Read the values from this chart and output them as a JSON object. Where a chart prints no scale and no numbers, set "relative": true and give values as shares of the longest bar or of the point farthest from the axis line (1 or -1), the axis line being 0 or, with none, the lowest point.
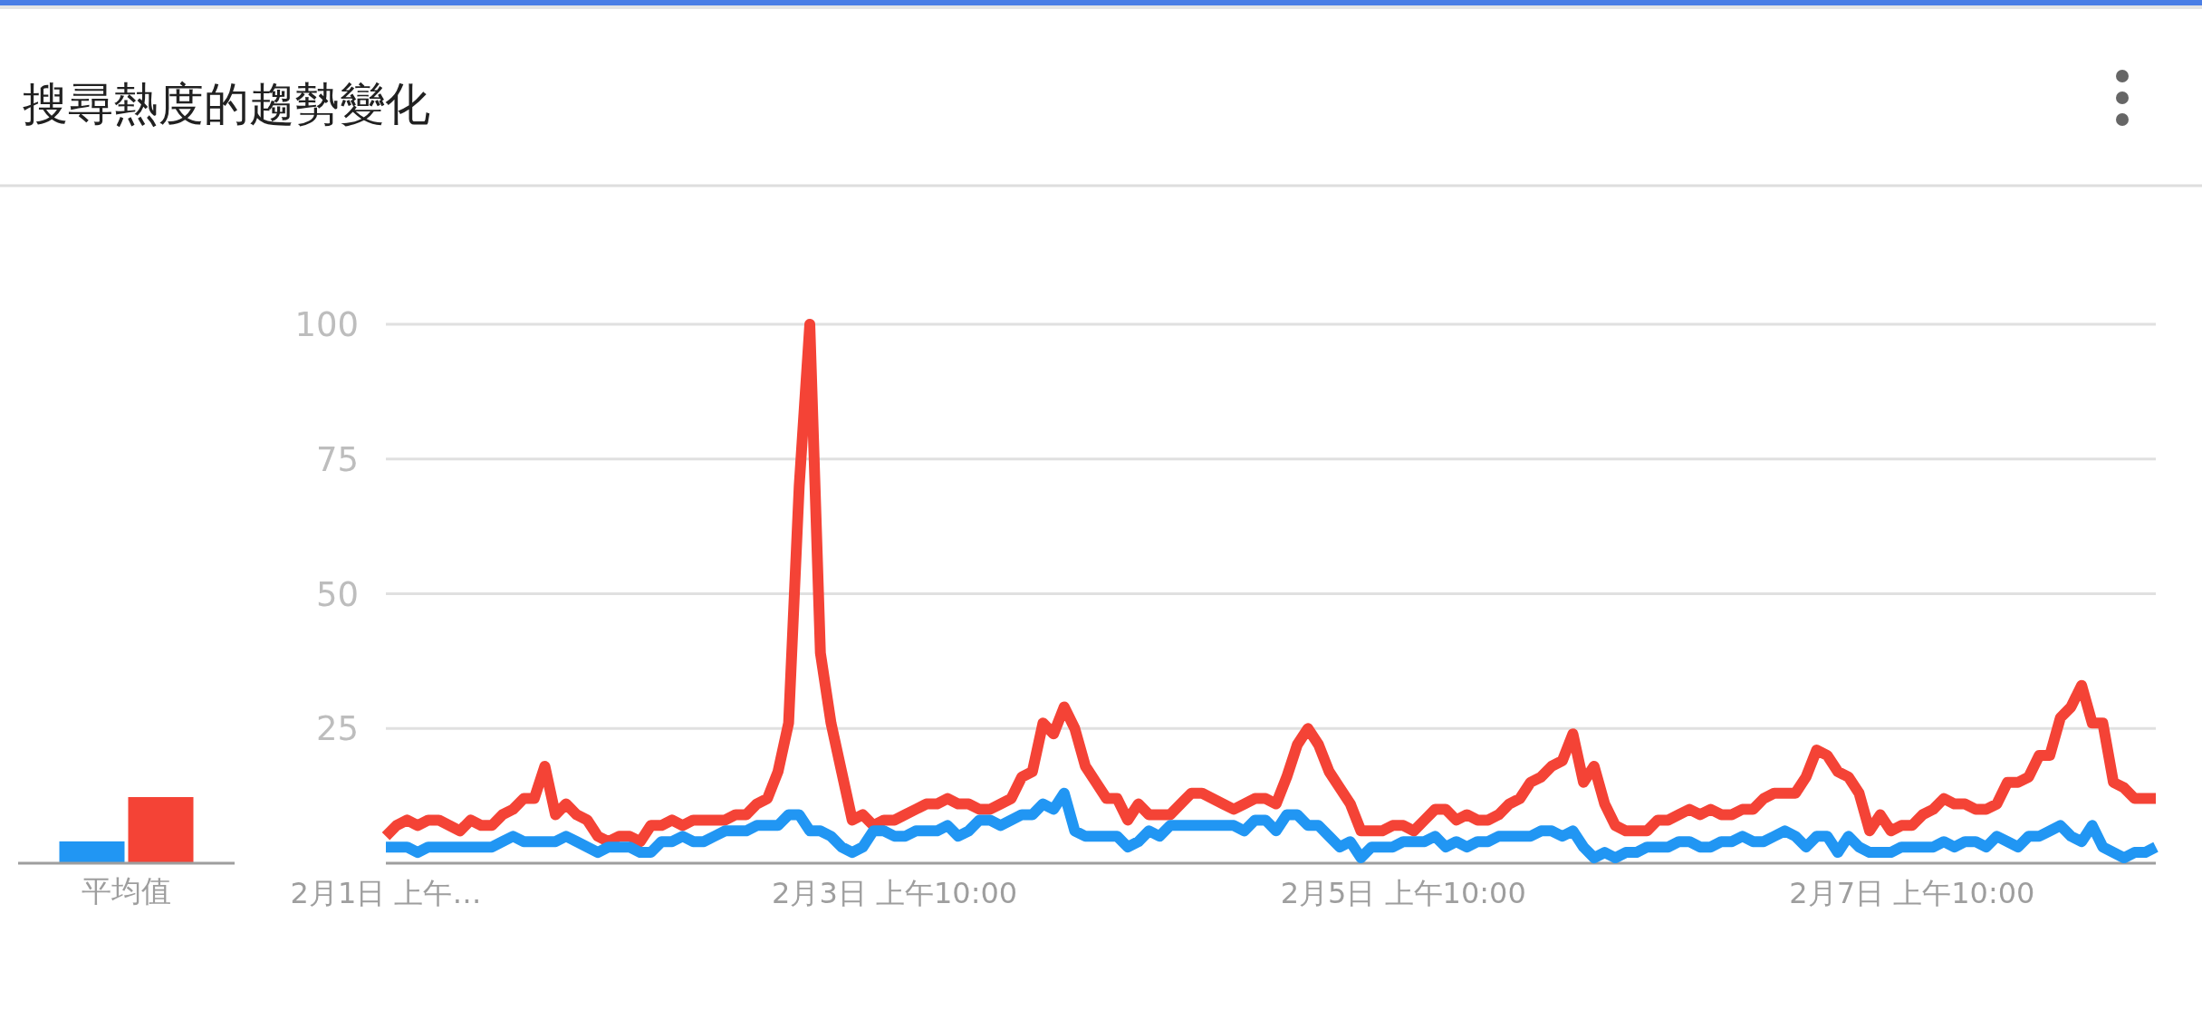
{
  "chart_data": [
    {
      "type": "bar",
      "title": "搜尋熱度的趨勢變化",
      "relative": true,
      "categories": [
        "平均值"
      ],
      "series": [
        {
          "color": "#2196f3",
          "values": [
            0.33
          ]
        },
        {
          "color": "#f44336",
          "values": [
            1
          ]
        }
      ]
    },
    {
      "type": "line",
      "ylim": [
        0,
        100
      ],
      "grid": "y",
      "categories": [
        "2月1日 上午…",
        null,
        null,
        null,
        null,
        null,
        null,
        null,
        null,
        null,
        null,
        null,
        null,
        null,
        null,
        null,
        null,
        null,
        null,
        null,
        null,
        null,
        null,
        null,
        null,
        null,
        null,
        null,
        null,
        null,
        null,
        null,
        null,
        null,
        null,
        null,
        null,
        null,
        null,
        null,
        null,
        null,
        null,
        null,
        null,
        null,
        null,
        null,
        "2月3日 上午10:00",
        null,
        null,
        null,
        null,
        null,
        null,
        null,
        null,
        null,
        null,
        null,
        null,
        null,
        null,
        null,
        null,
        null,
        null,
        null,
        null,
        null,
        null,
        null,
        null,
        null,
        null,
        null,
        null,
        null,
        null,
        null,
        null,
        null,
        null,
        null,
        null,
        null,
        null,
        null,
        null,
        null,
        null,
        null,
        null,
        null,
        null,
        null,
        "2月5日 上午10:00",
        null,
        null,
        null,
        null,
        null,
        null,
        null,
        null,
        null,
        null,
        null,
        null,
        null,
        null,
        null,
        null,
        null,
        null,
        null,
        null,
        null,
        null,
        null,
        null,
        null,
        null,
        null,
        null,
        null,
        null,
        null,
        null,
        null,
        null,
        null,
        null,
        null,
        null,
        null,
        null,
        null,
        null,
        null,
        null,
        null,
        null,
        null,
        "2月7日 上午10:00",
        null,
        null,
        null,
        null,
        null,
        null,
        null,
        null,
        null,
        null,
        null,
        null,
        null,
        null,
        null,
        null,
        null,
        null,
        null,
        null,
        null,
        null,
        null
      ],
      "yticks": [
        {
          "value": 0,
          "label": null
        },
        25,
        50,
        75,
        100
      ],
      "series": [
        {
          "color": "#f44336",
          "values": [
            5,
            7,
            8,
            7,
            8,
            8,
            7,
            6,
            8,
            7,
            7,
            9,
            10,
            12,
            12,
            18,
            9,
            11,
            9,
            8,
            5,
            4,
            5,
            5,
            4,
            7,
            7,
            8,
            7,
            8,
            8,
            8,
            8,
            9,
            9,
            11,
            12,
            17,
            26,
            70,
            100,
            39,
            26,
            17,
            8,
            9,
            7,
            8,
            8,
            9,
            10,
            11,
            11,
            12,
            11,
            11,
            10,
            10,
            11,
            12,
            16,
            17,
            26,
            24,
            29,
            25,
            18,
            15,
            12,
            12,
            8,
            11,
            9,
            9,
            9,
            11,
            13,
            13,
            12,
            11,
            10,
            11,
            12,
            12,
            11,
            16,
            22,
            25,
            22,
            17,
            14,
            11,
            6,
            6,
            6,
            7,
            7,
            6,
            8,
            10,
            10,
            8,
            9,
            8,
            8,
            9,
            11,
            12,
            15,
            16,
            18,
            19,
            24,
            15,
            18,
            11,
            7,
            6,
            6,
            6,
            8,
            8,
            9,
            10,
            9,
            10,
            9,
            9,
            10,
            10,
            12,
            13,
            13,
            13,
            16,
            21,
            20,
            17,
            16,
            13,
            6,
            9,
            6,
            7,
            7,
            9,
            10,
            12,
            11,
            11,
            10,
            10,
            11,
            15,
            15,
            16,
            20,
            20,
            27,
            29,
            33,
            26,
            26,
            15,
            14,
            12,
            12,
            12
          ]
        },
        {
          "color": "#2196f3",
          "values": [
            3,
            3,
            3,
            2,
            3,
            3,
            3,
            3,
            3,
            3,
            3,
            4,
            5,
            4,
            4,
            4,
            4,
            5,
            4,
            3,
            2,
            3,
            3,
            3,
            2,
            2,
            4,
            4,
            5,
            4,
            4,
            5,
            6,
            6,
            6,
            7,
            7,
            7,
            9,
            9,
            6,
            6,
            5,
            3,
            2,
            3,
            6,
            6,
            5,
            5,
            6,
            6,
            6,
            7,
            5,
            6,
            8,
            8,
            7,
            8,
            9,
            9,
            11,
            10,
            13,
            6,
            5,
            5,
            5,
            5,
            3,
            4,
            6,
            5,
            7,
            7,
            7,
            7,
            7,
            7,
            7,
            6,
            8,
            8,
            6,
            9,
            9,
            7,
            7,
            5,
            3,
            4,
            1,
            3,
            3,
            3,
            4,
            4,
            4,
            5,
            3,
            4,
            3,
            4,
            4,
            5,
            5,
            5,
            5,
            6,
            6,
            5,
            6,
            3,
            1,
            2,
            1,
            2,
            2,
            3,
            3,
            3,
            4,
            4,
            3,
            3,
            4,
            4,
            5,
            4,
            4,
            5,
            6,
            5,
            3,
            5,
            5,
            2,
            5,
            3,
            2,
            2,
            2,
            3,
            3,
            3,
            3,
            4,
            3,
            4,
            4,
            3,
            5,
            4,
            3,
            5,
            5,
            6,
            7,
            5,
            4,
            7,
            3,
            2,
            1,
            2,
            2,
            3
          ]
        }
      ]
    }
  ]
}
